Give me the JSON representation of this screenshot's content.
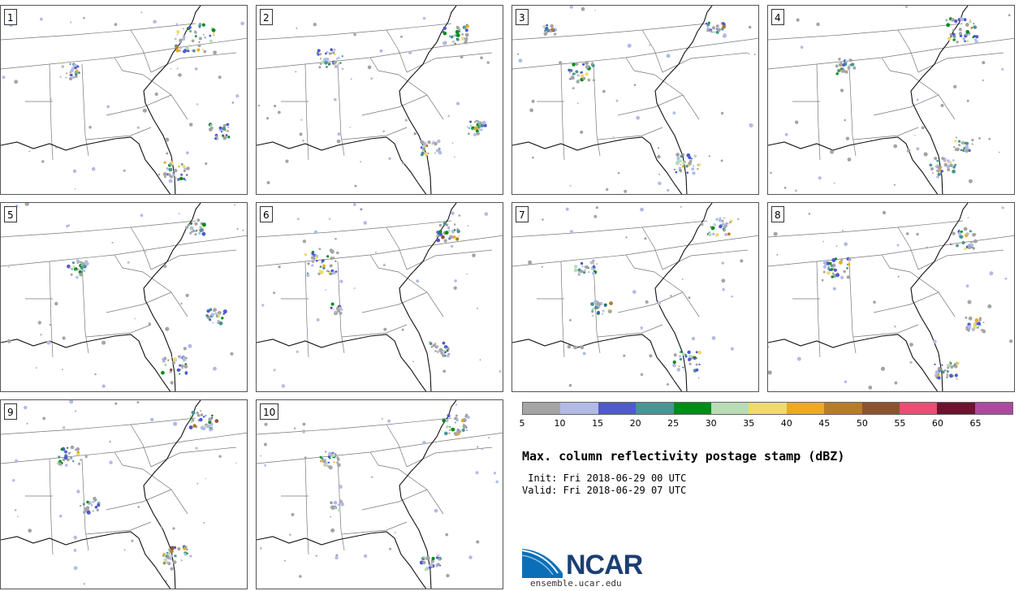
{
  "members": [
    "1",
    "2",
    "3",
    "4",
    "5",
    "6",
    "7",
    "8",
    "9",
    "10"
  ],
  "colorbar": {
    "colors": [
      "#a4a4a4",
      "#b2bbe6",
      "#5058d2",
      "#4a9494",
      "#008c1a",
      "#b8dcb6",
      "#eedc66",
      "#eaac1c",
      "#b67c2c",
      "#8a5430",
      "#ee4c74",
      "#6a1430",
      "#aa4c9e"
    ],
    "ticks": [
      "5",
      "10",
      "15",
      "20",
      "25",
      "30",
      "35",
      "40",
      "45",
      "50",
      "55",
      "60",
      "65"
    ]
  },
  "title": "Max. column reflectivity postage stamp (dBZ)",
  "init_label": " Init: Fri 2018-06-29 00 UTC",
  "valid_label": "Valid: Fri 2018-06-29 07 UTC",
  "logo": {
    "text": "NCAR",
    "url": "ensemble.ucar.edu"
  },
  "map_colors": {
    "border": "#777777",
    "coast": "#111111",
    "land": "#ffffff"
  }
}
